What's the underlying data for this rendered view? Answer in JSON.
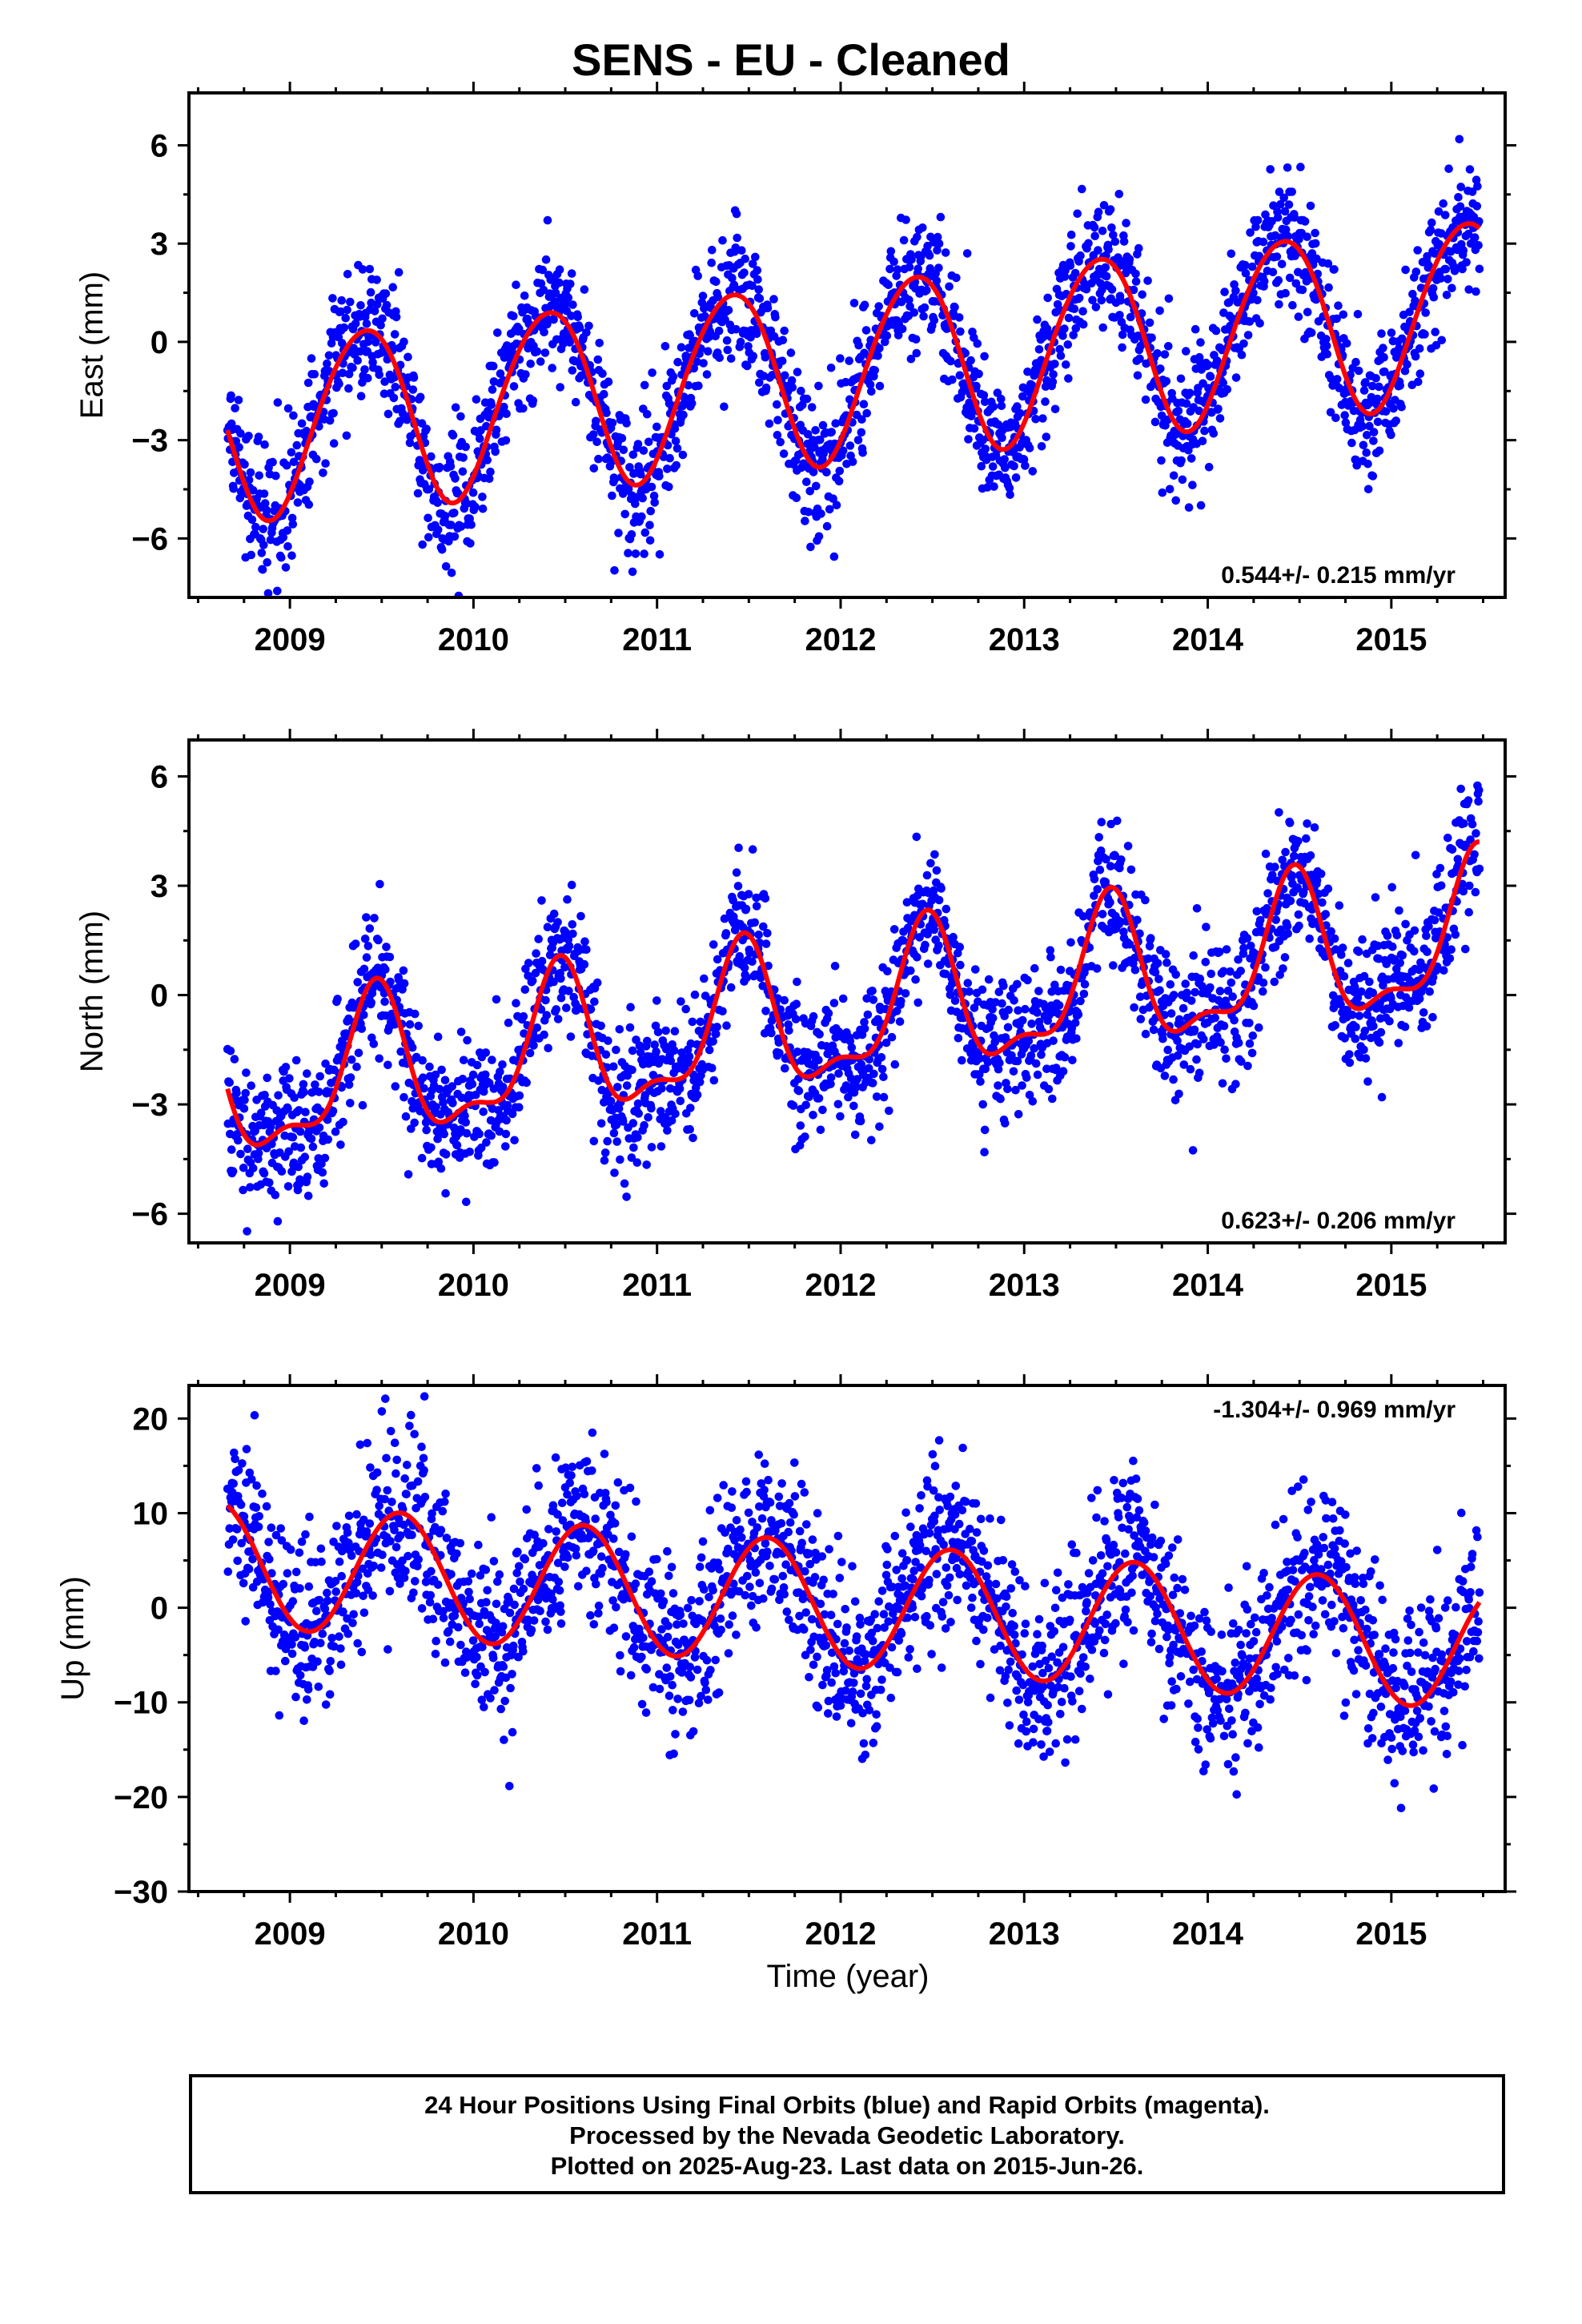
{
  "title": "SENS  - EU - Cleaned",
  "xlabel": "Time (year)",
  "footer": {
    "line1": "24 Hour Positions Using Final Orbits (blue) and Rapid Orbits (magenta).",
    "line2": "Processed by the Nevada Geodetic Laboratory.",
    "line3": "Plotted on 2025-Aug-23. Last data on 2015-Jun-26."
  },
  "colors": {
    "final_orbits": "#0000ff",
    "model_fit": "#ff0000"
  },
  "chart_data": [
    {
      "type": "scatter",
      "component": "east",
      "ylabel": "East (mm)",
      "rate_label": "0.544+/- 0.215 mm/yr",
      "rate_label_position": "bottom-right",
      "xlim": [
        2008.45,
        2015.62
      ],
      "ylim": [
        -7.8,
        7.6
      ],
      "xticks": [
        2009,
        2010,
        2011,
        2012,
        2013,
        2014,
        2015
      ],
      "yticks": [
        -6,
        -3,
        0,
        3,
        6
      ],
      "ytick_labels": [
        "−6",
        "−3",
        "0",
        "3",
        "6"
      ],
      "x_start": 2008.66,
      "x_end": 2015.48,
      "model": {
        "intercept": -0.85,
        "trend": 0.544,
        "t0": 2012.0,
        "annual_amp": 2.75,
        "annual_peak": 2008.4,
        "semiannual_amp": 0.2,
        "semiannual_peak": 2008.1
      },
      "noise_sd": 1.05,
      "series": [
        {
          "name": "Final orbit positions",
          "marker": "dot"
        },
        {
          "name": "Model fit",
          "marker": "line"
        }
      ]
    },
    {
      "type": "scatter",
      "component": "north",
      "ylabel": "North (mm)",
      "rate_label": "0.623+/- 0.206 mm/yr",
      "rate_label_position": "bottom-right",
      "xlim": [
        2008.45,
        2015.62
      ],
      "ylim": [
        -6.8,
        7.0
      ],
      "xticks": [
        2009,
        2010,
        2011,
        2012,
        2013,
        2014,
        2015
      ],
      "yticks": [
        -6,
        -3,
        0,
        3,
        6
      ],
      "ytick_labels": [
        "−6",
        "−3",
        "0",
        "3",
        "6"
      ],
      "x_start": 2008.66,
      "x_end": 2015.48,
      "model": {
        "intercept": -0.6,
        "trend": 0.623,
        "t0": 2012.0,
        "annual_amp": 1.9,
        "annual_peak": 2008.46,
        "semiannual_amp": 0.75,
        "semiannual_peak": 2008.48
      },
      "noise_sd": 0.95,
      "series": [
        {
          "name": "Final orbit positions",
          "marker": "dot"
        },
        {
          "name": "Model fit",
          "marker": "line"
        }
      ]
    },
    {
      "type": "scatter",
      "component": "up",
      "ylabel": "Up (mm)",
      "rate_label": "-1.304+/- 0.969 mm/yr",
      "rate_label_position": "top-right",
      "xlim": [
        2008.45,
        2015.62
      ],
      "ylim": [
        -30,
        23.5
      ],
      "xticks": [
        2009,
        2010,
        2011,
        2012,
        2013,
        2014,
        2015
      ],
      "xtick_labels_bold": true,
      "yticks": [
        -30,
        -20,
        -10,
        0,
        10,
        20
      ],
      "ytick_labels": [
        "−30",
        "−20",
        "−10",
        "0",
        "10",
        "20"
      ],
      "x_start": 2008.66,
      "x_end": 2015.48,
      "model": {
        "intercept": 0.3,
        "trend": -1.304,
        "t0": 2012.0,
        "annual_amp": 6.6,
        "annual_peak": 2008.6,
        "semiannual_amp": 0.0,
        "semiannual_peak": 2008.0
      },
      "noise_sd": 4.6,
      "series": [
        {
          "name": "Final orbit positions",
          "marker": "dot"
        },
        {
          "name": "Model fit",
          "marker": "line"
        }
      ]
    }
  ]
}
